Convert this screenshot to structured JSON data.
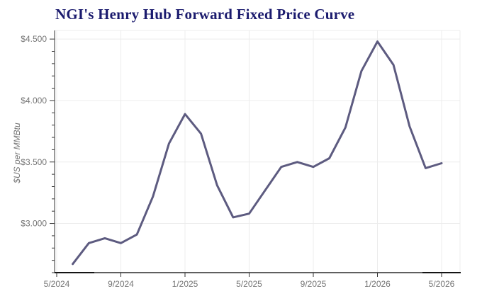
{
  "chart_data": {
    "type": "line",
    "title": "NGI's Henry Hub Forward Fixed Price Curve",
    "title_color": "#1b1b6e",
    "ylabel": "$US per MMBtu",
    "xlabel": "",
    "legend_position": "none",
    "grid": true,
    "line_color": "#5d5b80",
    "axis_label_color": "#757575",
    "grid_color": "#ececec",
    "axis_color": "#5f5f5f",
    "tick_color": "#333333",
    "ylim": [
      2.6,
      4.57
    ],
    "y_minor_step": 0.1,
    "y_ticks": [
      {
        "label": "$4.500",
        "value": 4.5
      },
      {
        "label": "$4.000",
        "value": 4.0
      },
      {
        "label": "$3.500",
        "value": 3.5
      },
      {
        "label": "$3.000",
        "value": 3.0
      }
    ],
    "x_ticks": [
      {
        "label": "5/2024",
        "month_index": 0
      },
      {
        "label": "9/2024",
        "month_index": 4
      },
      {
        "label": "1/2025",
        "month_index": 8
      },
      {
        "label": "5/2025",
        "month_index": 12
      },
      {
        "label": "9/2025",
        "month_index": 16
      },
      {
        "label": "1/2026",
        "month_index": 20
      },
      {
        "label": "5/2026",
        "month_index": 24
      }
    ],
    "points": [
      {
        "month": "6/2024",
        "month_index": 1,
        "value": 2.67
      },
      {
        "month": "7/2024",
        "month_index": 2,
        "value": 2.84
      },
      {
        "month": "8/2024",
        "month_index": 3,
        "value": 2.88
      },
      {
        "month": "9/2024",
        "month_index": 4,
        "value": 2.84
      },
      {
        "month": "10/2024",
        "month_index": 5,
        "value": 2.91
      },
      {
        "month": "11/2024",
        "month_index": 6,
        "value": 3.22
      },
      {
        "month": "12/2024",
        "month_index": 7,
        "value": 3.65
      },
      {
        "month": "1/2025",
        "month_index": 8,
        "value": 3.89
      },
      {
        "month": "2/2025",
        "month_index": 9,
        "value": 3.73
      },
      {
        "month": "3/2025",
        "month_index": 10,
        "value": 3.31
      },
      {
        "month": "4/2025",
        "month_index": 11,
        "value": 3.05
      },
      {
        "month": "5/2025",
        "month_index": 12,
        "value": 3.08
      },
      {
        "month": "6/2025",
        "month_index": 13,
        "value": 3.27
      },
      {
        "month": "7/2025",
        "month_index": 14,
        "value": 3.46
      },
      {
        "month": "8/2025",
        "month_index": 15,
        "value": 3.5
      },
      {
        "month": "9/2025",
        "month_index": 16,
        "value": 3.46
      },
      {
        "month": "10/2025",
        "month_index": 17,
        "value": 3.53
      },
      {
        "month": "11/2025",
        "month_index": 18,
        "value": 3.78
      },
      {
        "month": "12/2025",
        "month_index": 19,
        "value": 4.24
      },
      {
        "month": "1/2026",
        "month_index": 20,
        "value": 4.48
      },
      {
        "month": "2/2026",
        "month_index": 21,
        "value": 4.29
      },
      {
        "month": "3/2026",
        "month_index": 22,
        "value": 3.79
      },
      {
        "month": "4/2026",
        "month_index": 23,
        "value": 3.45
      },
      {
        "month": "5/2026",
        "month_index": 24,
        "value": 3.49
      }
    ]
  }
}
